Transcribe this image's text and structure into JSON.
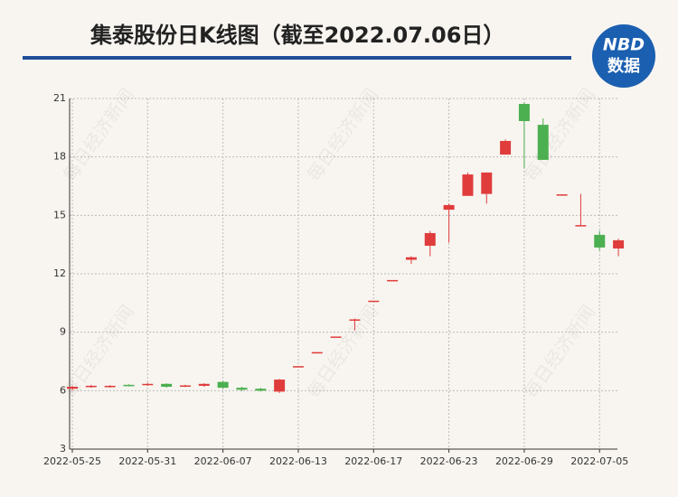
{
  "chart_data": {
    "type": "candlestick",
    "title": "集泰股份日K线图（截至2022.07.06日）",
    "logo": {
      "top": "NBD",
      "bottom": "数据"
    },
    "watermark": "每日经济新闻",
    "categories": [
      "2022-05-25",
      null,
      null,
      null,
      "2022-05-31",
      null,
      null,
      null,
      "2022-06-07",
      null,
      null,
      null,
      "2022-06-13",
      null,
      null,
      null,
      "2022-06-17",
      null,
      null,
      null,
      "2022-06-23",
      null,
      null,
      null,
      "2022-06-29",
      null,
      null,
      null,
      "2022-07-05",
      null
    ],
    "open": [
      6.1,
      6.2,
      6.2,
      6.3,
      6.3,
      6.35,
      6.22,
      6.25,
      6.45,
      6.15,
      6.1,
      5.95,
      7.26,
      7.98,
      8.78,
      9.6,
      10.62,
      11.68,
      12.72,
      13.44,
      15.29,
      16.0,
      16.1,
      18.12,
      20.72,
      19.65,
      16.08,
      14.5,
      14.0,
      13.3
    ],
    "high": [
      6.25,
      6.3,
      6.28,
      6.33,
      6.4,
      6.38,
      6.3,
      6.38,
      6.5,
      6.2,
      6.15,
      6.6,
      7.26,
      7.98,
      8.78,
      9.7,
      10.62,
      11.68,
      12.9,
      14.2,
      15.6,
      17.2,
      17.2,
      18.9,
      20.8,
      19.98,
      16.08,
      16.1,
      14.2,
      13.8
    ],
    "low": [
      6.0,
      6.15,
      6.15,
      6.22,
      6.25,
      6.15,
      6.18,
      6.2,
      6.1,
      5.98,
      5.95,
      5.88,
      7.26,
      7.98,
      8.78,
      9.1,
      10.62,
      11.68,
      12.5,
      12.9,
      13.6,
      16.0,
      15.6,
      18.12,
      17.43,
      17.85,
      16.08,
      14.5,
      13.2,
      12.9
    ],
    "close": [
      6.2,
      6.25,
      6.25,
      6.25,
      6.35,
      6.2,
      6.27,
      6.35,
      6.15,
      6.05,
      6.0,
      6.57,
      7.26,
      7.98,
      8.78,
      9.66,
      10.62,
      11.68,
      12.85,
      14.09,
      15.53,
      17.1,
      17.2,
      18.82,
      19.84,
      17.85,
      16.08,
      14.5,
      13.35,
      13.72
    ],
    "up_color": "#e03c3c",
    "down_color": "#4caf50",
    "ylim": [
      3,
      21
    ],
    "yticks": [
      3,
      6,
      9,
      12,
      15,
      18,
      21
    ],
    "grid": true
  }
}
